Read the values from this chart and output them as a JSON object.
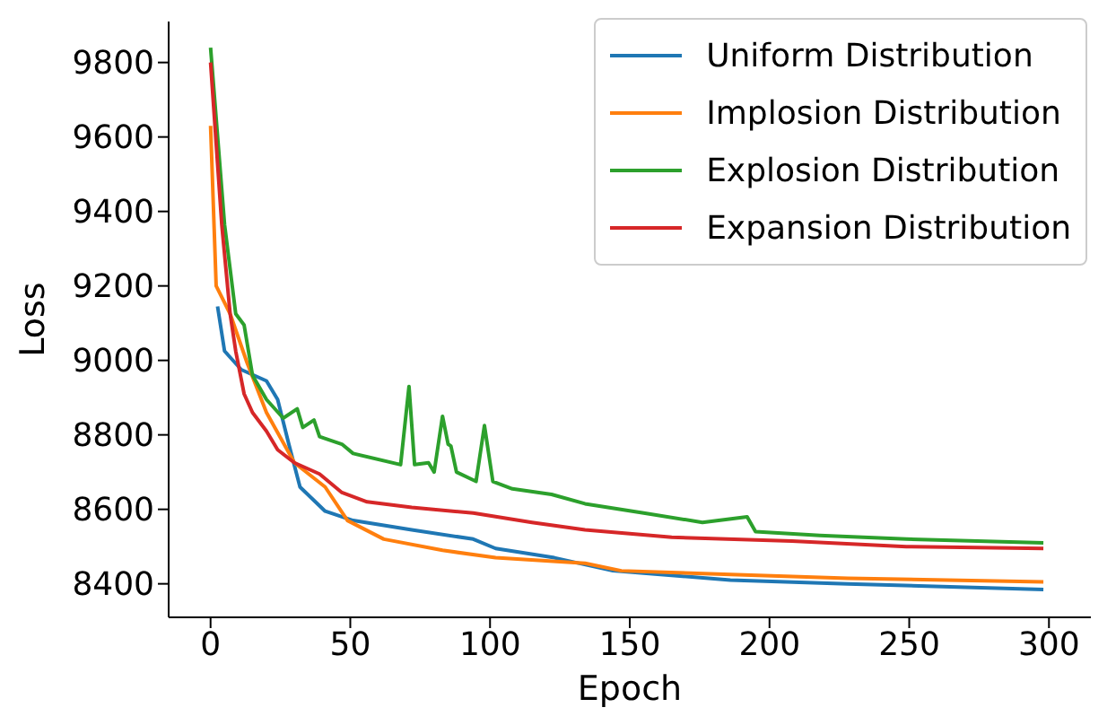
{
  "chart_data": {
    "type": "line",
    "xlabel": "Epoch",
    "ylabel": "Loss",
    "xlim": [
      -15,
      315
    ],
    "ylim": [
      8310,
      9910
    ],
    "xticks": [
      0,
      50,
      100,
      150,
      200,
      250,
      300
    ],
    "yticks": [
      8400,
      8600,
      8800,
      9000,
      9200,
      9400,
      9600,
      9800
    ],
    "grid": false,
    "legend": "top right",
    "marker": "none",
    "line_style": "solid",
    "series": [
      {
        "name": "Uniform Distribution",
        "color": "#1f77b4",
        "x": [
          2.5,
          5,
          11,
          20,
          24,
          28,
          32,
          41,
          51,
          72,
          94,
          102,
          123,
          144,
          186,
          228,
          298
        ],
        "values": [
          9145,
          9025,
          8975,
          8945,
          8895,
          8775,
          8660,
          8595,
          8570,
          8545,
          8520,
          8495,
          8470,
          8435,
          8410,
          8400,
          8385
        ]
      },
      {
        "name": "Implosion Distribution",
        "color": "#ff7f0e",
        "x": [
          0,
          2,
          7,
          13,
          20,
          30,
          41,
          49,
          62,
          83,
          102,
          134,
          147,
          186,
          228,
          298
        ],
        "values": [
          9630,
          9200,
          9125,
          8995,
          8860,
          8725,
          8660,
          8570,
          8520,
          8490,
          8470,
          8455,
          8435,
          8425,
          8415,
          8405
        ]
      },
      {
        "name": "Explosion Distribution",
        "color": "#2ca02c",
        "x": [
          0,
          5,
          9,
          12,
          15,
          20,
          26,
          31,
          33,
          37,
          39,
          47,
          51,
          68,
          71,
          73,
          78,
          80,
          83,
          85,
          86,
          88,
          95,
          98,
          101,
          108,
          122,
          134,
          155,
          176,
          192,
          195,
          218,
          249,
          298
        ],
        "values": [
          9840,
          9365,
          9125,
          9095,
          8960,
          8895,
          8845,
          8870,
          8820,
          8840,
          8795,
          8775,
          8750,
          8720,
          8930,
          8720,
          8725,
          8700,
          8850,
          8775,
          8770,
          8700,
          8675,
          8825,
          8675,
          8655,
          8640,
          8615,
          8590,
          8565,
          8580,
          8540,
          8530,
          8520,
          8510
        ]
      },
      {
        "name": "Expansion Distribution",
        "color": "#d62728",
        "x": [
          0,
          4,
          7,
          9,
          12,
          15,
          20,
          24,
          30,
          39,
          47,
          56,
          72,
          94,
          115,
          134,
          165,
          208,
          249,
          298
        ],
        "values": [
          9800,
          9365,
          9125,
          9025,
          8910,
          8860,
          8810,
          8760,
          8725,
          8695,
          8645,
          8620,
          8605,
          8590,
          8565,
          8545,
          8525,
          8515,
          8500,
          8495
        ]
      }
    ]
  }
}
